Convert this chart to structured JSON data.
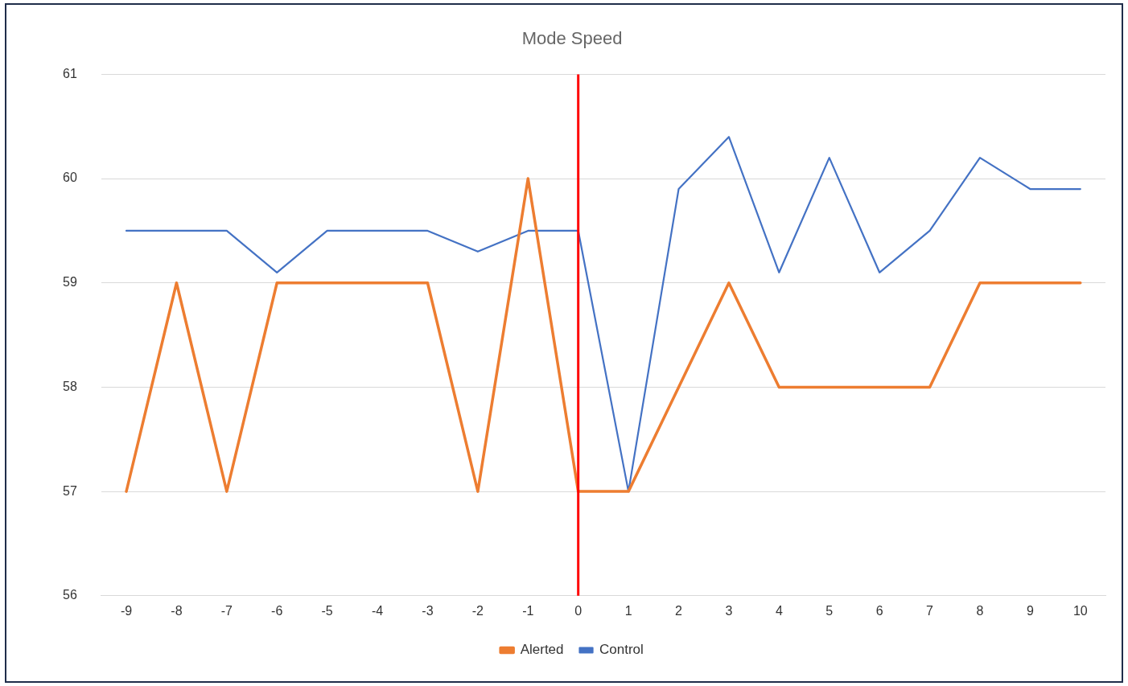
{
  "chart_data": {
    "type": "line",
    "title": "Mode Speed",
    "categories": [
      "-9",
      "-8",
      "-7",
      "-6",
      "-5",
      "-4",
      "-3",
      "-2",
      "-1",
      "0",
      "1",
      "2",
      "3",
      "4",
      "5",
      "6",
      "7",
      "8",
      "9",
      "10"
    ],
    "series": [
      {
        "name": "Alerted",
        "color": "#ed7d31",
        "values": [
          57,
          59,
          57,
          59,
          59,
          59,
          59,
          57,
          60,
          57,
          57,
          58,
          59,
          58,
          58,
          58,
          58,
          59,
          59,
          59
        ]
      },
      {
        "name": "Control",
        "color": "#4472c4",
        "values": [
          59.5,
          59.5,
          59.5,
          59.1,
          59.5,
          59.5,
          59.5,
          59.3,
          59.5,
          59.5,
          57,
          59.9,
          60.4,
          59.1,
          60.2,
          59.1,
          59.5,
          60.2,
          59.9,
          59.9
        ]
      }
    ],
    "ylim": [
      56,
      61
    ],
    "yticks": [
      56,
      57,
      58,
      59,
      60,
      61
    ],
    "grid": "y",
    "legend": "bottom",
    "marker": "none",
    "line_style": "solid",
    "ref_lines": [
      {
        "axis": "x",
        "value": "0",
        "color": "#ff0000"
      }
    ]
  }
}
